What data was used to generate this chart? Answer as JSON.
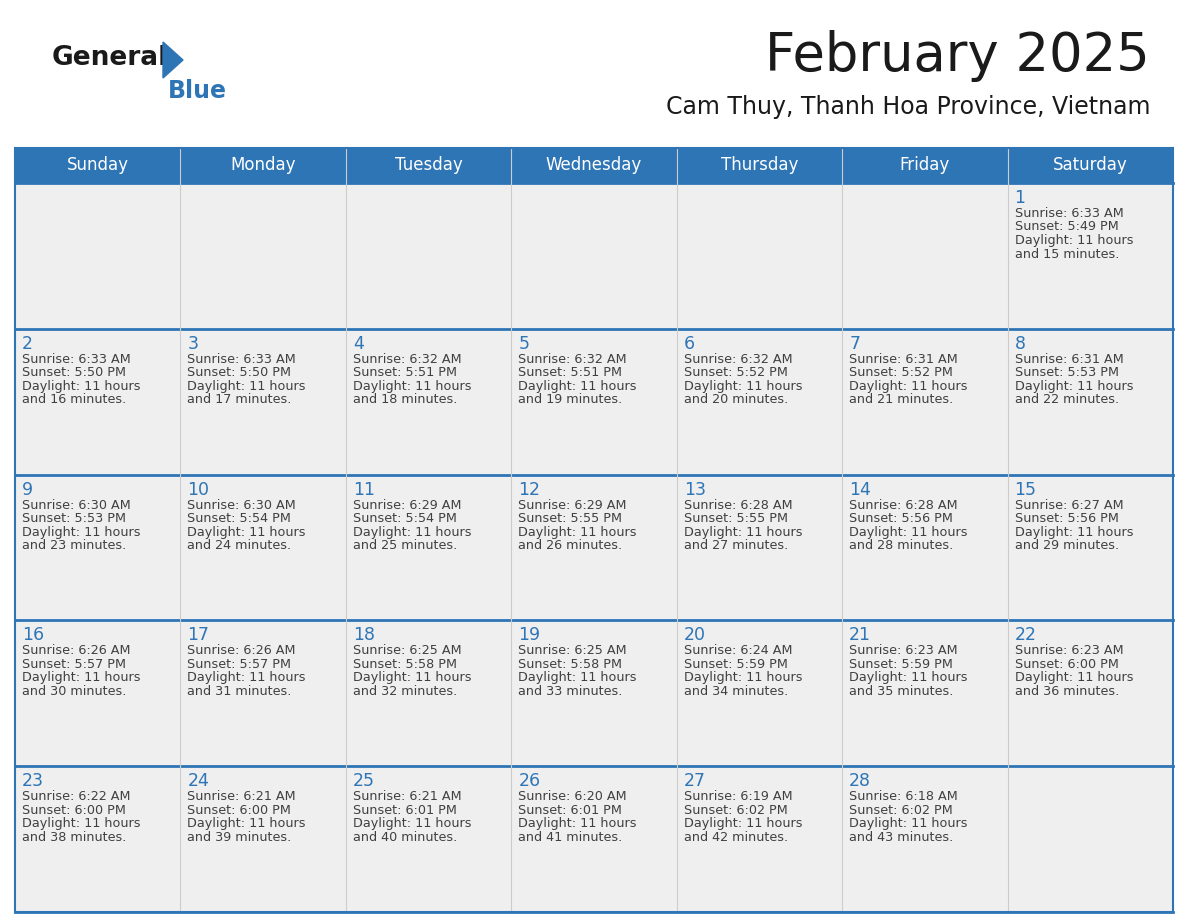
{
  "title": "February 2025",
  "subtitle": "Cam Thuy, Thanh Hoa Province, Vietnam",
  "header_bg": "#2E75B6",
  "header_text": "#FFFFFF",
  "cell_bg": "#EFEFEF",
  "cell_border": "#2E75B6",
  "day_number_color": "#2E75B6",
  "info_text_color": "#404040",
  "weekdays": [
    "Sunday",
    "Monday",
    "Tuesday",
    "Wednesday",
    "Thursday",
    "Friday",
    "Saturday"
  ],
  "logo_general_color": "#1a1a1a",
  "logo_blue_color": "#2E75B6",
  "days": [
    {
      "day": 1,
      "col": 6,
      "row": 0,
      "sunrise": "6:33 AM",
      "sunset": "5:49 PM",
      "daylight_h": "11 hours",
      "daylight_m": "and 15 minutes."
    },
    {
      "day": 2,
      "col": 0,
      "row": 1,
      "sunrise": "6:33 AM",
      "sunset": "5:50 PM",
      "daylight_h": "11 hours",
      "daylight_m": "and 16 minutes."
    },
    {
      "day": 3,
      "col": 1,
      "row": 1,
      "sunrise": "6:33 AM",
      "sunset": "5:50 PM",
      "daylight_h": "11 hours",
      "daylight_m": "and 17 minutes."
    },
    {
      "day": 4,
      "col": 2,
      "row": 1,
      "sunrise": "6:32 AM",
      "sunset": "5:51 PM",
      "daylight_h": "11 hours",
      "daylight_m": "and 18 minutes."
    },
    {
      "day": 5,
      "col": 3,
      "row": 1,
      "sunrise": "6:32 AM",
      "sunset": "5:51 PM",
      "daylight_h": "11 hours",
      "daylight_m": "and 19 minutes."
    },
    {
      "day": 6,
      "col": 4,
      "row": 1,
      "sunrise": "6:32 AM",
      "sunset": "5:52 PM",
      "daylight_h": "11 hours",
      "daylight_m": "and 20 minutes."
    },
    {
      "day": 7,
      "col": 5,
      "row": 1,
      "sunrise": "6:31 AM",
      "sunset": "5:52 PM",
      "daylight_h": "11 hours",
      "daylight_m": "and 21 minutes."
    },
    {
      "day": 8,
      "col": 6,
      "row": 1,
      "sunrise": "6:31 AM",
      "sunset": "5:53 PM",
      "daylight_h": "11 hours",
      "daylight_m": "and 22 minutes."
    },
    {
      "day": 9,
      "col": 0,
      "row": 2,
      "sunrise": "6:30 AM",
      "sunset": "5:53 PM",
      "daylight_h": "11 hours",
      "daylight_m": "and 23 minutes."
    },
    {
      "day": 10,
      "col": 1,
      "row": 2,
      "sunrise": "6:30 AM",
      "sunset": "5:54 PM",
      "daylight_h": "11 hours",
      "daylight_m": "and 24 minutes."
    },
    {
      "day": 11,
      "col": 2,
      "row": 2,
      "sunrise": "6:29 AM",
      "sunset": "5:54 PM",
      "daylight_h": "11 hours",
      "daylight_m": "and 25 minutes."
    },
    {
      "day": 12,
      "col": 3,
      "row": 2,
      "sunrise": "6:29 AM",
      "sunset": "5:55 PM",
      "daylight_h": "11 hours",
      "daylight_m": "and 26 minutes."
    },
    {
      "day": 13,
      "col": 4,
      "row": 2,
      "sunrise": "6:28 AM",
      "sunset": "5:55 PM",
      "daylight_h": "11 hours",
      "daylight_m": "and 27 minutes."
    },
    {
      "day": 14,
      "col": 5,
      "row": 2,
      "sunrise": "6:28 AM",
      "sunset": "5:56 PM",
      "daylight_h": "11 hours",
      "daylight_m": "and 28 minutes."
    },
    {
      "day": 15,
      "col": 6,
      "row": 2,
      "sunrise": "6:27 AM",
      "sunset": "5:56 PM",
      "daylight_h": "11 hours",
      "daylight_m": "and 29 minutes."
    },
    {
      "day": 16,
      "col": 0,
      "row": 3,
      "sunrise": "6:26 AM",
      "sunset": "5:57 PM",
      "daylight_h": "11 hours",
      "daylight_m": "and 30 minutes."
    },
    {
      "day": 17,
      "col": 1,
      "row": 3,
      "sunrise": "6:26 AM",
      "sunset": "5:57 PM",
      "daylight_h": "11 hours",
      "daylight_m": "and 31 minutes."
    },
    {
      "day": 18,
      "col": 2,
      "row": 3,
      "sunrise": "6:25 AM",
      "sunset": "5:58 PM",
      "daylight_h": "11 hours",
      "daylight_m": "and 32 minutes."
    },
    {
      "day": 19,
      "col": 3,
      "row": 3,
      "sunrise": "6:25 AM",
      "sunset": "5:58 PM",
      "daylight_h": "11 hours",
      "daylight_m": "and 33 minutes."
    },
    {
      "day": 20,
      "col": 4,
      "row": 3,
      "sunrise": "6:24 AM",
      "sunset": "5:59 PM",
      "daylight_h": "11 hours",
      "daylight_m": "and 34 minutes."
    },
    {
      "day": 21,
      "col": 5,
      "row": 3,
      "sunrise": "6:23 AM",
      "sunset": "5:59 PM",
      "daylight_h": "11 hours",
      "daylight_m": "and 35 minutes."
    },
    {
      "day": 22,
      "col": 6,
      "row": 3,
      "sunrise": "6:23 AM",
      "sunset": "6:00 PM",
      "daylight_h": "11 hours",
      "daylight_m": "and 36 minutes."
    },
    {
      "day": 23,
      "col": 0,
      "row": 4,
      "sunrise": "6:22 AM",
      "sunset": "6:00 PM",
      "daylight_h": "11 hours",
      "daylight_m": "and 38 minutes."
    },
    {
      "day": 24,
      "col": 1,
      "row": 4,
      "sunrise": "6:21 AM",
      "sunset": "6:00 PM",
      "daylight_h": "11 hours",
      "daylight_m": "and 39 minutes."
    },
    {
      "day": 25,
      "col": 2,
      "row": 4,
      "sunrise": "6:21 AM",
      "sunset": "6:01 PM",
      "daylight_h": "11 hours",
      "daylight_m": "and 40 minutes."
    },
    {
      "day": 26,
      "col": 3,
      "row": 4,
      "sunrise": "6:20 AM",
      "sunset": "6:01 PM",
      "daylight_h": "11 hours",
      "daylight_m": "and 41 minutes."
    },
    {
      "day": 27,
      "col": 4,
      "row": 4,
      "sunrise": "6:19 AM",
      "sunset": "6:02 PM",
      "daylight_h": "11 hours",
      "daylight_m": "and 42 minutes."
    },
    {
      "day": 28,
      "col": 5,
      "row": 4,
      "sunrise": "6:18 AM",
      "sunset": "6:02 PM",
      "daylight_h": "11 hours",
      "daylight_m": "and 43 minutes."
    }
  ],
  "num_rows": 5,
  "num_cols": 7,
  "fig_width": 11.88,
  "fig_height": 9.18,
  "dpi": 100
}
